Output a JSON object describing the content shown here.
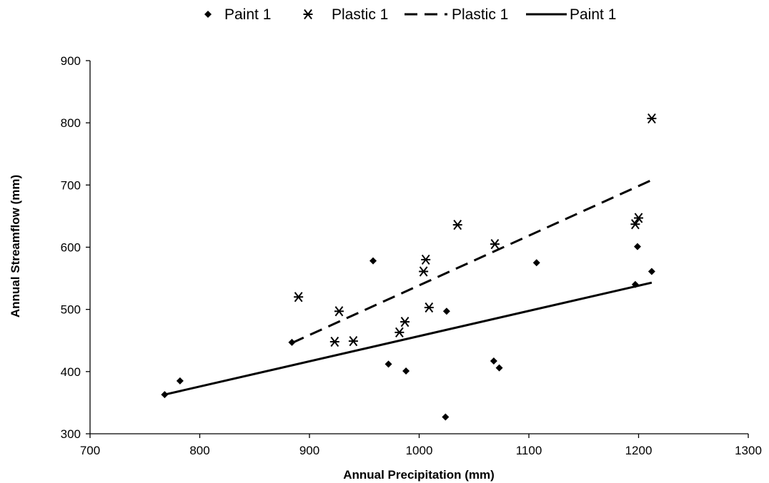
{
  "chart_data": {
    "type": "scatter",
    "xlabel": "Annual Precipitation (mm)",
    "ylabel": "Annual Streamflow (mm)",
    "xlim": [
      700,
      1300
    ],
    "ylim": [
      300,
      900
    ],
    "x_ticks": [
      700,
      800,
      900,
      1000,
      1100,
      1200,
      1300
    ],
    "y_ticks": [
      300,
      400,
      500,
      600,
      700,
      800,
      900
    ],
    "grid": false,
    "legend_position": "top",
    "legend": [
      {
        "label": "Paint 1",
        "marker": "diamond"
      },
      {
        "label": "Plastic 1",
        "marker": "asterisk"
      },
      {
        "label": "Plastic 1",
        "line": "dashed"
      },
      {
        "label": "Paint 1",
        "line": "solid"
      }
    ],
    "series": [
      {
        "name": "Paint 1",
        "kind": "scatter",
        "marker": "diamond",
        "color": "#000000",
        "points": [
          [
            768,
            363
          ],
          [
            782,
            385
          ],
          [
            884,
            447
          ],
          [
            958,
            578
          ],
          [
            972,
            412
          ],
          [
            988,
            401
          ],
          [
            1024,
            327
          ],
          [
            1025,
            497
          ],
          [
            1068,
            417
          ],
          [
            1073,
            406
          ],
          [
            1107,
            575
          ],
          [
            1197,
            540
          ],
          [
            1199,
            601
          ],
          [
            1212,
            561
          ]
        ]
      },
      {
        "name": "Plastic 1",
        "kind": "scatter",
        "marker": "asterisk",
        "color": "#000000",
        "points": [
          [
            890,
            520
          ],
          [
            923,
            448
          ],
          [
            927,
            497
          ],
          [
            940,
            449
          ],
          [
            982,
            463
          ],
          [
            987,
            480
          ],
          [
            1004,
            561
          ],
          [
            1006,
            580
          ],
          [
            1009,
            503
          ],
          [
            1035,
            636
          ],
          [
            1069,
            605
          ],
          [
            1197,
            637
          ],
          [
            1200,
            647
          ],
          [
            1212,
            807
          ]
        ]
      },
      {
        "name": "Plastic 1",
        "kind": "line",
        "style": "dashed",
        "color": "#000000",
        "points": [
          [
            884,
            446
          ],
          [
            1212,
            708
          ]
        ]
      },
      {
        "name": "Paint 1",
        "kind": "line",
        "style": "solid",
        "color": "#000000",
        "points": [
          [
            768,
            363
          ],
          [
            1212,
            543
          ]
        ]
      }
    ]
  }
}
